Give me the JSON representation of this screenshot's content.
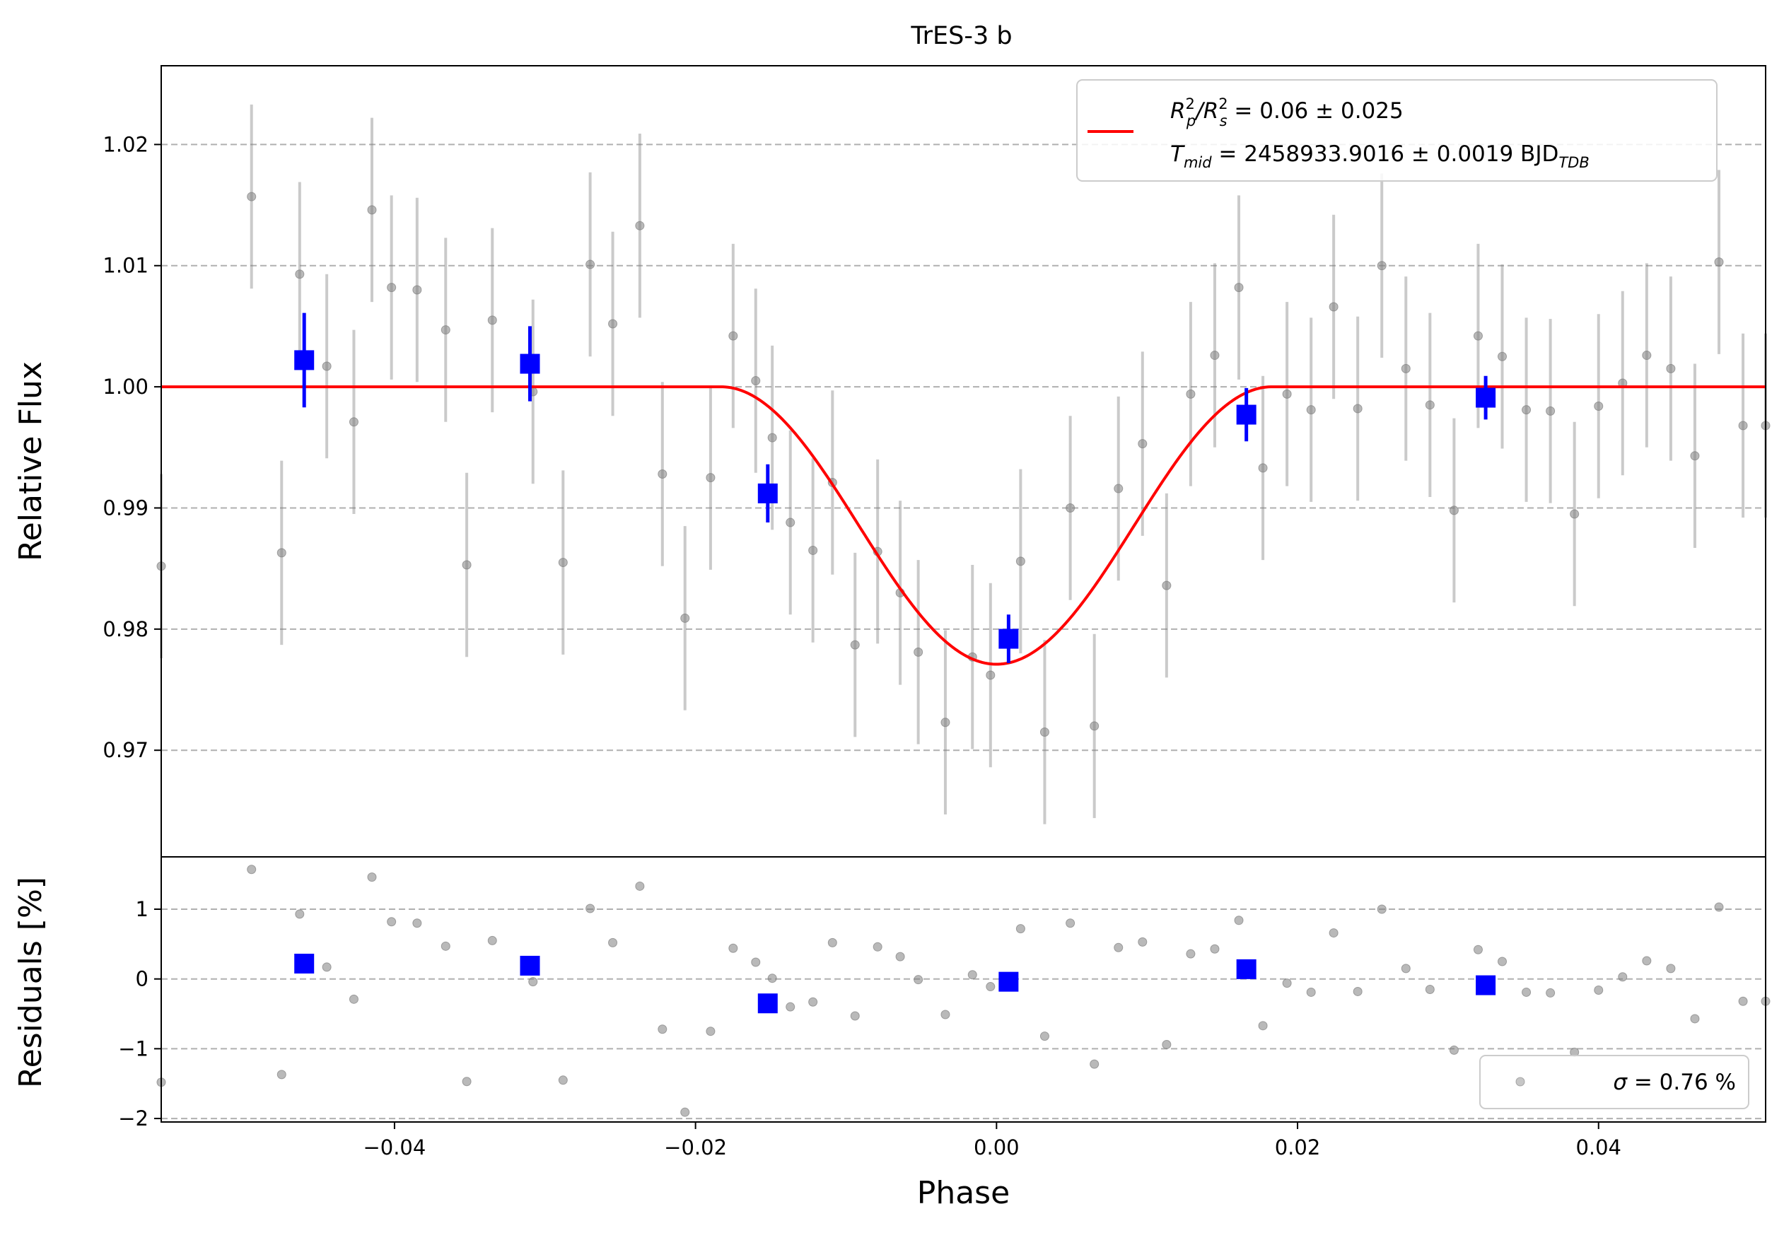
{
  "chart_data": [
    {
      "type": "scatter",
      "title": "TrES-3 b",
      "xlabel": "",
      "ylabel": "Relative Flux",
      "xlim": [
        -0.0555,
        0.0511
      ],
      "ylim": [
        0.9612,
        1.0265
      ],
      "grid": "y-dashed",
      "yticks": [
        0.97,
        0.98,
        0.99,
        1.0,
        1.01,
        1.02
      ],
      "ytick_labels": [
        "0.97",
        "0.98",
        "0.99",
        "1.00",
        "1.01",
        "1.02"
      ],
      "legend": {
        "placement": "top-right",
        "line1": {
          "prefix": "R",
          "sub1": "p",
          "sup1": "2",
          "mid": "/R",
          "sub2": "s",
          "sup2": "2",
          "suffix": " = 0.06 ± 0.025"
        },
        "line2": {
          "prefix": "T",
          "sub": "mid",
          "value": " = 2458933.9016 ± 0.0019 BJD",
          "sub2": "TDB"
        },
        "color": "#ff0000"
      },
      "model": {
        "name": "",
        "color": "#ff0000",
        "depth": 0.0229,
        "t1": -0.0183,
        "t4": 0.0183,
        "baseline": 1.0
      },
      "raw_points": {
        "color": "#808080",
        "x": [
          -0.0555,
          -0.0495,
          -0.0475,
          -0.0463,
          -0.0445,
          -0.0427,
          -0.0415,
          -0.0402,
          -0.0385,
          -0.0366,
          -0.0352,
          -0.0335,
          -0.0308,
          -0.0288,
          -0.027,
          -0.0255,
          -0.0237,
          -0.0222,
          -0.0207,
          -0.019,
          -0.0175,
          -0.016,
          -0.0149,
          -0.0137,
          -0.0122,
          -0.0109,
          -0.0094,
          -0.0079,
          -0.0064,
          -0.0052,
          -0.0034,
          -0.0016,
          -0.0004,
          0.0016,
          0.0032,
          0.0049,
          0.0065,
          0.0081,
          0.0097,
          0.0113,
          0.0129,
          0.0145,
          0.0161,
          0.0177,
          0.0193,
          0.0209,
          0.0224,
          0.024,
          0.0256,
          0.0272,
          0.0288,
          0.0304,
          0.032,
          0.0336,
          0.0352,
          0.0368,
          0.0384,
          0.04,
          0.0416,
          0.0432,
          0.0448,
          0.0464,
          0.048,
          0.0496,
          0.0511
        ],
        "y": [
          0.9852,
          1.0157,
          0.9863,
          1.0093,
          1.0017,
          0.9971,
          1.0146,
          1.0082,
          1.008,
          1.0047,
          0.9853,
          1.0055,
          0.9996,
          0.9855,
          1.0101,
          1.0052,
          1.0133,
          0.9928,
          0.9809,
          0.9925,
          1.0042,
          1.0005,
          0.9958,
          0.9888,
          0.9865,
          0.9921,
          0.9787,
          0.9864,
          0.983,
          0.9781,
          0.9723,
          0.9777,
          0.9762,
          0.9856,
          0.9715,
          0.99,
          0.972,
          0.9916,
          0.9953,
          0.9836,
          0.9994,
          1.0026,
          1.0082,
          0.9933,
          0.9994,
          0.9981,
          1.0066,
          0.9982,
          1.01,
          1.0015,
          0.9985,
          0.9898,
          1.0042,
          1.0025,
          0.9981,
          0.998,
          0.9895,
          0.9984,
          1.0003,
          1.0026,
          1.0015,
          0.9943,
          1.0103,
          0.9968,
          0.9968
        ],
        "err": 0.0076
      },
      "binned_points": {
        "color": "#0000ff",
        "x": [
          -0.046,
          -0.031,
          -0.0152,
          0.0008,
          0.0166,
          0.0325
        ],
        "y": [
          1.0022,
          1.0019,
          0.9912,
          0.9792,
          0.9977,
          0.9991
        ],
        "err": [
          0.0039,
          0.0031,
          0.0024,
          0.002,
          0.0022,
          0.0018
        ]
      }
    },
    {
      "type": "scatter",
      "xlabel": "Phase",
      "ylabel": "Residuals [%]",
      "xlim": [
        -0.0555,
        0.0511
      ],
      "ylim": [
        -2.05,
        1.75
      ],
      "grid": "y-dashed",
      "xticks": [
        -0.04,
        -0.02,
        0.0,
        0.02,
        0.04
      ],
      "xtick_labels": [
        "−0.04",
        "−0.02",
        "0.00",
        "0.02",
        "0.04"
      ],
      "yticks": [
        -2,
        -1,
        0,
        1
      ],
      "ytick_labels": [
        "−2",
        "−1",
        "0",
        "1"
      ],
      "legend": {
        "placement": "bottom-right",
        "sigma_symbol": "σ",
        "text": " = 0.76 %"
      },
      "raw_residuals": {
        "color": "#808080",
        "x": [
          -0.0555,
          -0.0495,
          -0.0475,
          -0.0463,
          -0.0445,
          -0.0427,
          -0.0415,
          -0.0402,
          -0.0385,
          -0.0366,
          -0.0352,
          -0.0335,
          -0.0308,
          -0.0288,
          -0.027,
          -0.0255,
          -0.0237,
          -0.0222,
          -0.0207,
          -0.019,
          -0.0175,
          -0.016,
          -0.0149,
          -0.0137,
          -0.0122,
          -0.0109,
          -0.0094,
          -0.0079,
          -0.0064,
          -0.0052,
          -0.0034,
          -0.0016,
          -0.0004,
          0.0016,
          0.0032,
          0.0049,
          0.0065,
          0.0081,
          0.0097,
          0.0113,
          0.0129,
          0.0145,
          0.0161,
          0.0177,
          0.0193,
          0.0209,
          0.0224,
          0.024,
          0.0256,
          0.0272,
          0.0288,
          0.0304,
          0.032,
          0.0336,
          0.0352,
          0.0368,
          0.0384,
          0.04,
          0.0416,
          0.0432,
          0.0448,
          0.0464,
          0.048,
          0.0496,
          0.0511
        ],
        "y": [
          -1.48,
          1.57,
          -1.37,
          0.93,
          0.17,
          -0.29,
          1.46,
          0.82,
          0.8,
          0.47,
          -1.47,
          0.55,
          -0.04,
          -1.45,
          1.01,
          0.52,
          1.33,
          -0.72,
          -1.91,
          -0.75,
          0.44,
          0.24,
          0.01,
          -0.4,
          -0.33,
          0.52,
          -0.53,
          0.46,
          0.32,
          -0.01,
          -0.51,
          0.06,
          -0.11,
          0.72,
          -0.82,
          0.8,
          -1.22,
          0.45,
          0.53,
          -0.94,
          0.36,
          0.43,
          0.84,
          -0.67,
          -0.06,
          -0.19,
          0.66,
          -0.18,
          1.0,
          0.15,
          -0.15,
          -1.02,
          0.42,
          0.25,
          -0.19,
          -0.2,
          -1.05,
          -0.16,
          0.03,
          0.26,
          0.15,
          -0.57,
          1.03,
          -0.32,
          -0.32
        ]
      },
      "binned_residuals": {
        "color": "#0000ff",
        "x": [
          -0.046,
          -0.031,
          -0.0152,
          0.0008,
          0.0166,
          0.0325
        ],
        "y": [
          0.22,
          0.19,
          -0.35,
          -0.04,
          0.14,
          -0.09
        ]
      }
    }
  ]
}
